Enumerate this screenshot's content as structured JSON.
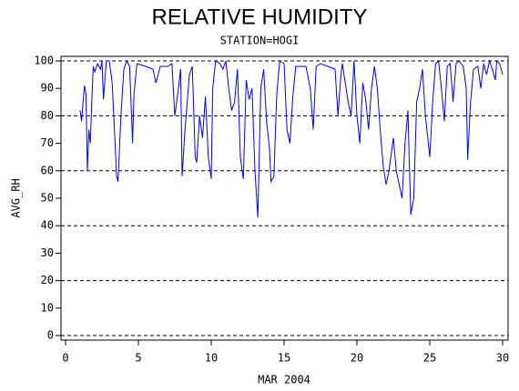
{
  "chart_data": {
    "type": "line",
    "title": "RELATIVE HUMIDITY",
    "subtitle": "STATION=HOGI",
    "y_label": "AVG_RH",
    "x_label": "MAR 2004",
    "xlim": [
      0,
      30
    ],
    "xticks": [
      0,
      5,
      10,
      15,
      20,
      25,
      30
    ],
    "ylim": [
      0,
      100
    ],
    "yticks": [
      0,
      10,
      20,
      30,
      40,
      50,
      60,
      70,
      80,
      90,
      100
    ],
    "ygrid": [
      0,
      20,
      40,
      60,
      80,
      100
    ],
    "x": [
      1.0,
      1.1,
      1.2,
      1.3,
      1.4,
      1.5,
      1.6,
      1.7,
      1.8,
      1.9,
      2.0,
      2.2,
      2.4,
      2.5,
      2.6,
      2.8,
      3.0,
      3.2,
      3.4,
      3.5,
      3.6,
      3.8,
      4.0,
      4.2,
      4.4,
      4.6,
      4.7,
      4.9,
      5.5,
      6.0,
      6.2,
      6.5,
      7.0,
      7.3,
      7.5,
      7.7,
      7.9,
      8.0,
      8.2,
      8.5,
      8.7,
      8.9,
      9.0,
      9.2,
      9.4,
      9.6,
      9.8,
      10.0,
      10.1,
      10.3,
      10.6,
      10.8,
      11.0,
      11.2,
      11.4,
      11.6,
      11.8,
      12.0,
      12.2,
      12.4,
      12.6,
      12.8,
      13.0,
      13.2,
      13.4,
      13.6,
      13.8,
      14.0,
      14.1,
      14.3,
      14.5,
      14.7,
      15.0,
      15.2,
      15.4,
      15.6,
      15.8,
      16.5,
      16.8,
      17.0,
      17.2,
      17.5,
      18.0,
      18.5,
      18.7,
      18.9,
      19.0,
      19.4,
      19.6,
      19.8,
      20.0,
      20.2,
      20.4,
      20.6,
      20.8,
      21.0,
      21.2,
      21.4,
      21.6,
      21.8,
      22.0,
      22.2,
      22.5,
      22.7,
      22.9,
      23.1,
      23.3,
      23.5,
      23.6,
      23.7,
      23.9,
      24.1,
      24.3,
      24.5,
      24.7,
      24.9,
      25.0,
      25.2,
      25.4,
      25.6,
      25.8,
      26.0,
      26.2,
      26.4,
      26.6,
      26.8,
      27.0,
      27.3,
      27.5,
      27.6,
      27.8,
      28.0,
      28.3,
      28.5,
      28.7,
      28.9,
      29.1,
      29.3,
      29.5,
      29.6,
      29.8,
      30.0
    ],
    "series": [
      {
        "name": "AVG_RH",
        "color": "#0000ff",
        "values": [
          82,
          78,
          85,
          91,
          88,
          60,
          75,
          70,
          85,
          98,
          96,
          99,
          97,
          100,
          86,
          100,
          100,
          92,
          70,
          58,
          56,
          80,
          97,
          100,
          98,
          70,
          88,
          99,
          98,
          97,
          92,
          98,
          98,
          99,
          80,
          88,
          97,
          58,
          75,
          95,
          98,
          65,
          63,
          80,
          72,
          87,
          65,
          57,
          90,
          100,
          99,
          97,
          100,
          90,
          82,
          85,
          97,
          65,
          57,
          93,
          86,
          90,
          60,
          43,
          90,
          97,
          78,
          68,
          56,
          58,
          88,
          100,
          99,
          75,
          70,
          87,
          98,
          98,
          90,
          75,
          98,
          99,
          98,
          97,
          80,
          95,
          99,
          85,
          80,
          100,
          80,
          70,
          92,
          86,
          75,
          90,
          98,
          90,
          75,
          62,
          55,
          60,
          72,
          60,
          55,
          50,
          70,
          82,
          62,
          44,
          50,
          85,
          90,
          97,
          80,
          70,
          65,
          85,
          99,
          100,
          90,
          78,
          98,
          99,
          85,
          99,
          100,
          98,
          90,
          64,
          85,
          97,
          98,
          90,
          99,
          95,
          100,
          97,
          93,
          100,
          99,
          95
        ]
      }
    ]
  }
}
